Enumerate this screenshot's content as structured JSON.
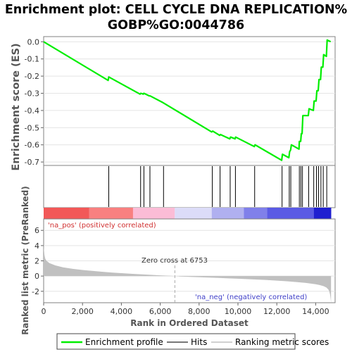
{
  "chart_data": [
    {
      "type": "line",
      "title": "Enrichment plot: CELL CYCLE DNA REPLICATION%",
      "subtitle": "GOBP%GO:0044786",
      "ylabel": "Enrichment score (ES)",
      "xlim": [
        0,
        15000
      ],
      "ylim": [
        -0.72,
        0.03
      ],
      "y_ticks": [
        "0.0",
        "-0.1",
        "-0.2",
        "-0.3",
        "-0.4",
        "-0.5",
        "-0.6",
        "-0.7"
      ],
      "series": [
        {
          "name": "Enrichment profile",
          "color": "#00ee00",
          "x": [
            0,
            3320,
            3350,
            4960,
            5000,
            5130,
            5160,
            5440,
            5480,
            6150,
            8650,
            8700,
            9060,
            9100,
            9580,
            9620,
            9850,
            9880,
            10840,
            10880,
            12250,
            12290,
            12620,
            12660,
            12710,
            12750,
            13140,
            13160,
            13230,
            13260,
            13300,
            13340,
            13620,
            13660,
            13880,
            13920,
            14020,
            14060,
            14130,
            14170,
            14250,
            14290,
            14370,
            14410,
            14550,
            14590,
            14770
          ],
          "y": [
            0.0,
            -0.225,
            -0.205,
            -0.305,
            -0.3,
            -0.305,
            -0.3,
            -0.315,
            -0.315,
            -0.355,
            -0.525,
            -0.52,
            -0.545,
            -0.54,
            -0.565,
            -0.555,
            -0.565,
            -0.555,
            -0.61,
            -0.6,
            -0.69,
            -0.655,
            -0.675,
            -0.64,
            -0.63,
            -0.6,
            -0.625,
            -0.58,
            -0.58,
            -0.535,
            -0.535,
            -0.43,
            -0.43,
            -0.39,
            -0.4,
            -0.345,
            -0.345,
            -0.285,
            -0.285,
            -0.22,
            -0.22,
            -0.148,
            -0.148,
            -0.075,
            -0.085,
            0.01,
            0.0
          ]
        }
      ]
    },
    {
      "type": "hits",
      "series": [
        {
          "name": "Hits",
          "color": "#000000",
          "x": [
            3350,
            4990,
            5160,
            5470,
            6170,
            8680,
            9080,
            9600,
            9870,
            10860,
            12270,
            12640,
            12720,
            13160,
            13240,
            13320,
            13640,
            13900,
            14040,
            14150,
            14270,
            14390,
            14570
          ]
        }
      ]
    },
    {
      "type": "area",
      "xlabel": "Rank in Ordered Dataset",
      "ylabel": "Ranked list metric (PreRanked)",
      "xlim": [
        0,
        15000
      ],
      "ylim": [
        -3.5,
        7.5
      ],
      "x_ticks": [
        "0",
        "2,000",
        "4,000",
        "6,000",
        "8,000",
        "10,000",
        "12,000",
        "14,000"
      ],
      "y_ticks": [
        "6",
        "4",
        "2",
        "0",
        "-2"
      ],
      "series": [
        {
          "name": "Ranking metric scores",
          "color": "#c0c0c0",
          "x": [
            0,
            15,
            40,
            80,
            150,
            300,
            600,
            1000,
            1500,
            2000,
            2500,
            3000,
            3500,
            4000,
            4500,
            5000,
            5500,
            6000,
            6500,
            6753,
            7000,
            7500,
            8000,
            8500,
            9000,
            9500,
            10000,
            10500,
            11000,
            11500,
            12000,
            12500,
            13000,
            13500,
            13800,
            14000,
            14200,
            14400,
            14550,
            14650,
            14700,
            14740,
            14770,
            14790
          ],
          "y": [
            4.2,
            3.5,
            2.8,
            2.3,
            2.0,
            1.7,
            1.4,
            1.15,
            0.95,
            0.8,
            0.68,
            0.57,
            0.47,
            0.38,
            0.3,
            0.23,
            0.16,
            0.1,
            0.04,
            0.0,
            -0.05,
            -0.1,
            -0.15,
            -0.2,
            -0.25,
            -0.3,
            -0.35,
            -0.4,
            -0.46,
            -0.52,
            -0.6,
            -0.68,
            -0.78,
            -0.9,
            -1.0,
            -1.08,
            -1.18,
            -1.32,
            -1.5,
            -1.75,
            -2.0,
            -2.4,
            -3.0,
            -3.5
          ]
        }
      ],
      "zero_cross": 6753,
      "annotations": {
        "zero_cross_text": "Zero cross at 6753",
        "pos_label": "'na_pos' (positively correlated)",
        "neg_label": "'na_neg' (negatively correlated)"
      }
    }
  ],
  "colorbar": {
    "segments": [
      {
        "to": 2350,
        "color": "#f25858"
      },
      {
        "to": 4600,
        "color": "#f88080"
      },
      {
        "to": 6750,
        "color": "#fbbcd6"
      },
      {
        "to": 8650,
        "color": "#dcdcf8"
      },
      {
        "to": 10300,
        "color": "#b0b0f0"
      },
      {
        "to": 11500,
        "color": "#8080ea"
      },
      {
        "to": 13900,
        "color": "#5a5ae4"
      },
      {
        "to": 14800,
        "color": "#1f1fd0"
      }
    ]
  },
  "legend": {
    "items": [
      {
        "label": "Enrichment profile",
        "color": "#00ee00"
      },
      {
        "label": "Hits",
        "color": "#777777"
      },
      {
        "label": "Ranking metric scores",
        "color": "#d0d0d0"
      }
    ]
  }
}
